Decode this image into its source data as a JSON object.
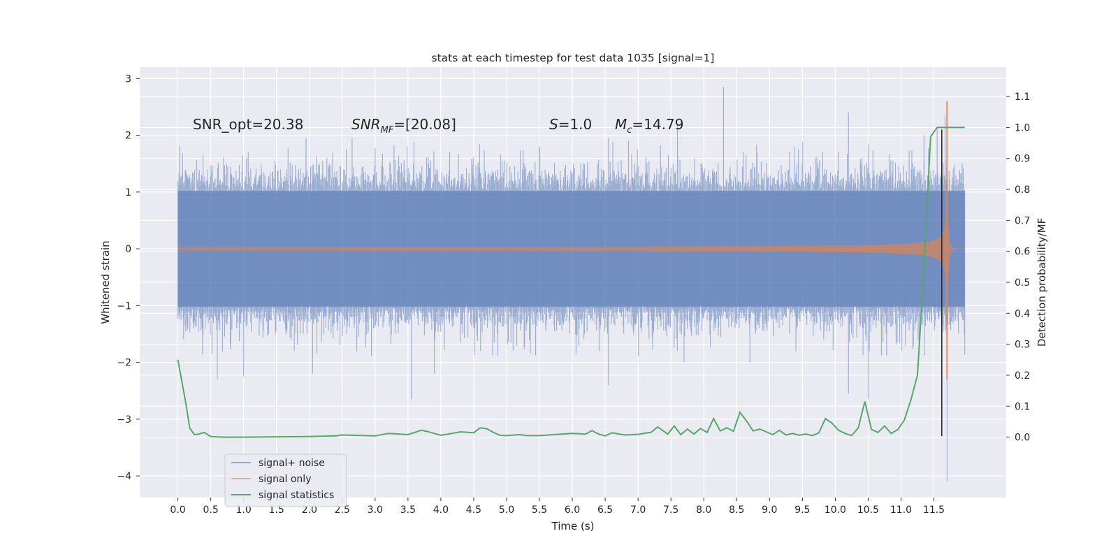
{
  "chart_data": {
    "type": "line",
    "title": "stats at each timestep for test data 1035 [signal=1]",
    "xlabel": "Time (s)",
    "ylabel_left": "Whitened strain",
    "ylabel_right": "Detection probability/MF",
    "xlim": [
      -0.58,
      12.6
    ],
    "ylim_left": [
      -4.38,
      3.2
    ],
    "ylim_right": [
      -0.195,
      1.195
    ],
    "xticks": [
      "0.0",
      "0.5",
      "1.0",
      "1.5",
      "2.0",
      "2.5",
      "3.0",
      "3.5",
      "4.0",
      "4.5",
      "5.0",
      "5.5",
      "6.0",
      "6.5",
      "7.0",
      "7.5",
      "8.0",
      "8.5",
      "9.0",
      "9.5",
      "10.0",
      "10.5",
      "11.0",
      "11.5"
    ],
    "yticks_left": [
      "3",
      "2",
      "1",
      "0",
      "−1",
      "−2",
      "−3",
      "−4"
    ],
    "yticks_right": [
      "1.1",
      "1.0",
      "0.9",
      "0.8",
      "0.7",
      "0.6",
      "0.5",
      "0.4",
      "0.3",
      "0.2",
      "0.1",
      "0.0"
    ],
    "grid": true,
    "legend_position": "lower-left",
    "annotations": {
      "snr_opt": "SNR_opt=20.38",
      "snr_mf_main": "SNR",
      "snr_mf_sub": "MF",
      "snr_mf_rest": "=[20.08]",
      "s_main": "S",
      "s_rest": "=1.0",
      "mc_main": "M",
      "mc_sub": "c",
      "mc_rest": "=14.79"
    },
    "series": [
      {
        "name": "signal+ noise",
        "axis": "left",
        "color": "#4c72b0",
        "style": "noise band",
        "t_range": [
          0.0,
          11.97
        ],
        "typical_amplitude": 1.0,
        "spikes": [
          [
            0.18,
            1.3
          ],
          [
            0.6,
            -2.3
          ],
          [
            1.0,
            -2.25
          ],
          [
            1.95,
            1.95
          ],
          [
            2.05,
            -2.2
          ],
          [
            2.65,
            1.95
          ],
          [
            3.55,
            -2.65
          ],
          [
            3.9,
            -2.2
          ],
          [
            5.5,
            1.8
          ],
          [
            6.55,
            1.95
          ],
          [
            6.55,
            -2.4
          ],
          [
            7.6,
            2.2
          ],
          [
            7.7,
            -2.0
          ],
          [
            8.3,
            2.85
          ],
          [
            8.7,
            -2.0
          ],
          [
            10.2,
            2.4
          ],
          [
            10.2,
            -2.55
          ],
          [
            10.5,
            -2.65
          ],
          [
            11.35,
            2.0
          ],
          [
            11.55,
            2.15
          ],
          [
            11.67,
            2.35
          ],
          [
            11.7,
            -4.1
          ]
        ]
      },
      {
        "name": "signal only",
        "axis": "left",
        "color": "#dd8452",
        "style": "chirp",
        "t_range": [
          0.0,
          11.97
        ],
        "merger_time": 11.68,
        "peak_amplitude": 2.6
      },
      {
        "name": "signal statistics",
        "axis": "right",
        "color": "#55a868",
        "t": [
          0.0,
          0.12,
          0.18,
          0.25,
          0.32,
          0.4,
          0.5,
          0.7,
          1.0,
          1.5,
          2.0,
          2.4,
          2.5,
          3.0,
          3.2,
          3.5,
          3.7,
          3.8,
          4.0,
          4.2,
          4.3,
          4.5,
          4.55,
          4.6,
          4.7,
          4.8,
          4.9,
          5.0,
          5.2,
          5.3,
          5.5,
          6.0,
          6.2,
          6.3,
          6.4,
          6.5,
          6.6,
          6.8,
          7.0,
          7.2,
          7.3,
          7.45,
          7.55,
          7.65,
          7.75,
          7.85,
          7.95,
          8.05,
          8.15,
          8.25,
          8.35,
          8.45,
          8.55,
          8.65,
          8.75,
          8.85,
          8.95,
          9.05,
          9.15,
          9.25,
          9.35,
          9.45,
          9.55,
          9.65,
          9.75,
          9.85,
          9.95,
          10.05,
          10.15,
          10.25,
          10.35,
          10.45,
          10.55,
          10.65,
          10.75,
          10.85,
          10.95,
          11.05,
          11.15,
          11.25,
          11.35,
          11.45,
          11.55,
          11.58,
          11.61,
          11.64,
          11.68,
          11.72,
          11.8,
          11.9,
          11.97
        ],
        "values": [
          0.25,
          0.11,
          0.03,
          0.008,
          0.01,
          0.015,
          0.002,
          0.0,
          0.0,
          0.001,
          0.002,
          0.004,
          0.007,
          0.004,
          0.012,
          0.008,
          0.022,
          0.018,
          0.006,
          0.013,
          0.017,
          0.014,
          0.022,
          0.03,
          0.027,
          0.015,
          0.006,
          0.005,
          0.008,
          0.005,
          0.005,
          0.012,
          0.01,
          0.021,
          0.01,
          0.004,
          0.014,
          0.007,
          0.009,
          0.016,
          0.033,
          0.01,
          0.036,
          0.008,
          0.026,
          0.01,
          0.028,
          0.015,
          0.06,
          0.02,
          0.03,
          0.019,
          0.08,
          0.052,
          0.02,
          0.026,
          0.017,
          0.008,
          0.022,
          0.007,
          0.012,
          0.006,
          0.01,
          0.005,
          0.014,
          0.06,
          0.045,
          0.022,
          0.012,
          0.005,
          0.03,
          0.115,
          0.025,
          0.015,
          0.036,
          0.012,
          0.024,
          0.055,
          0.12,
          0.2,
          0.55,
          0.97,
          1.0,
          1.0,
          1.0,
          1.0,
          1.0,
          1.0,
          1.0,
          1.0,
          1.0
        ]
      }
    ]
  }
}
